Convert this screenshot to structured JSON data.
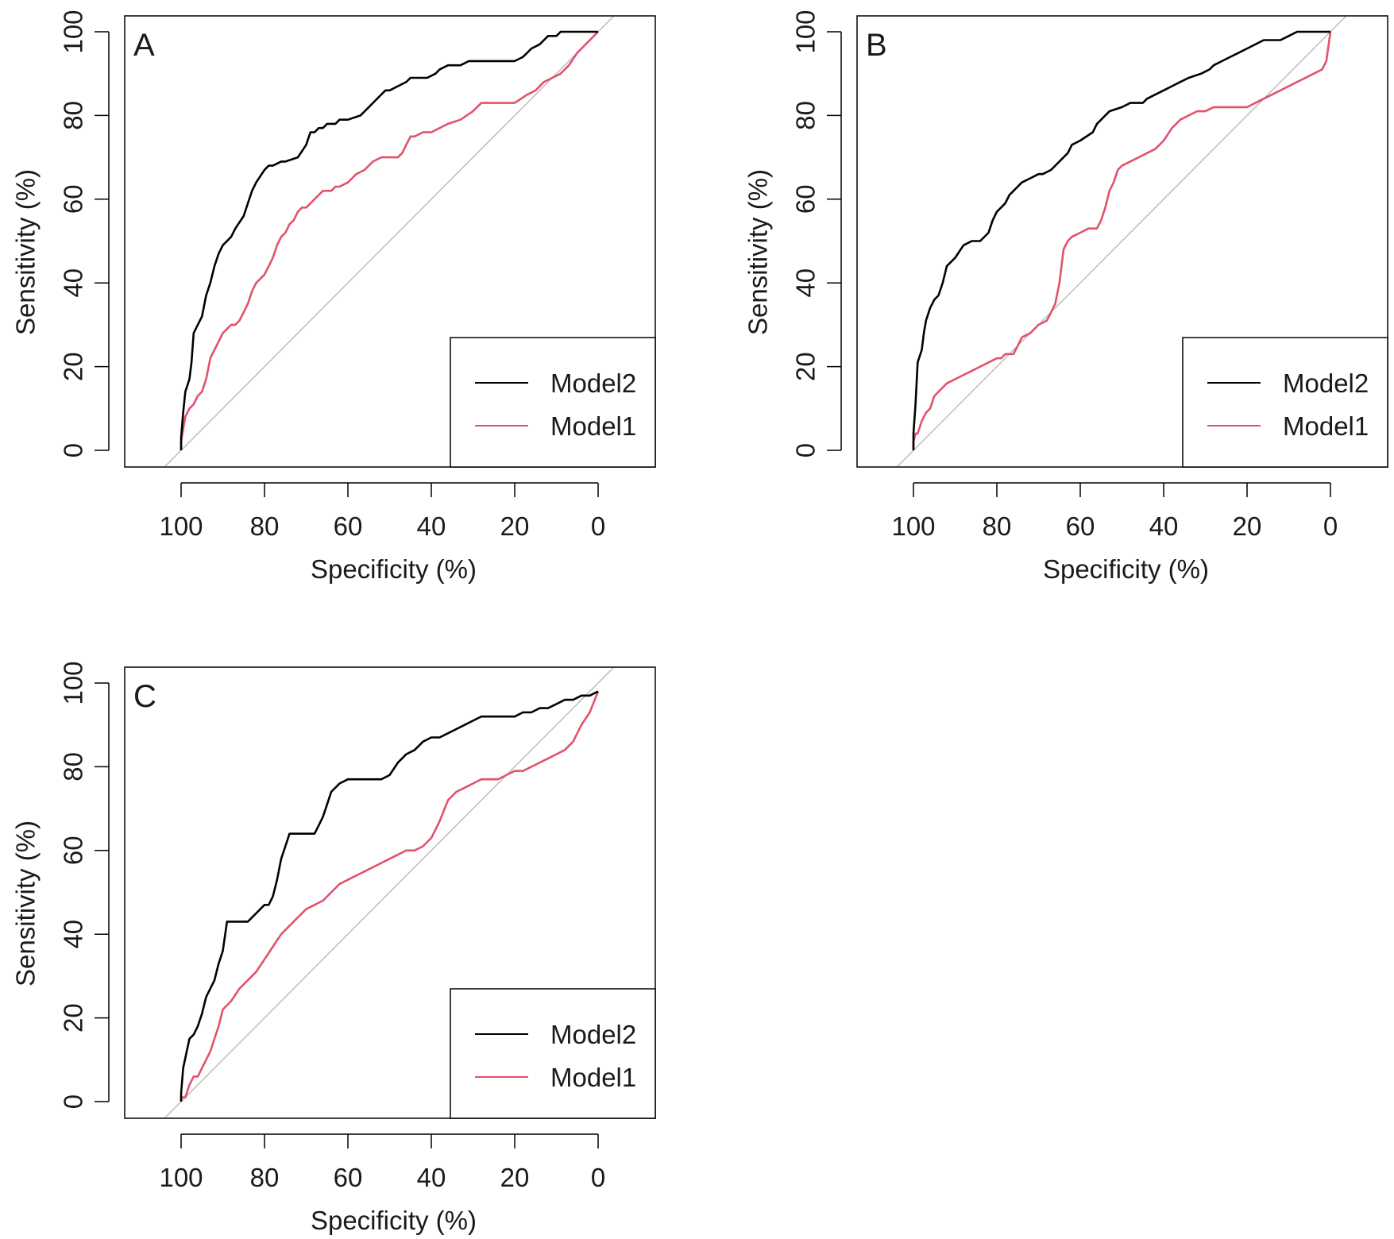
{
  "colors": {
    "Model2": "#000000",
    "Model1": "#df536b",
    "diagonal": "#bdbdbd"
  },
  "chart_data": [
    {
      "type": "line",
      "panel": "A",
      "xlabel": "Specificity (%)",
      "ylabel": "Sensitivity (%)",
      "xlim": [
        100,
        0
      ],
      "ylim": [
        0,
        100
      ],
      "xticks": [
        "100",
        "80",
        "60",
        "40",
        "20",
        "0"
      ],
      "yticks": [
        "0",
        "20",
        "40",
        "60",
        "80",
        "100"
      ],
      "legend": [
        "Model2",
        "Model1"
      ],
      "legend_position": "bottom-right",
      "series": [
        {
          "name": "Model2",
          "x": [
            100,
            100,
            99.5,
            99,
            98,
            97.5,
            97,
            96,
            95,
            94,
            93,
            92,
            91,
            90,
            88,
            87,
            85,
            84,
            83,
            82,
            80,
            79,
            78,
            76,
            75,
            72,
            70,
            69,
            68,
            67,
            66,
            65,
            64,
            63,
            62,
            60,
            57,
            55,
            53,
            52,
            51,
            50,
            48,
            46,
            45,
            43,
            41,
            39,
            38,
            36,
            34,
            33,
            31,
            28,
            25,
            22,
            20,
            18,
            17,
            16,
            14,
            13,
            12,
            11,
            10,
            9,
            8,
            6,
            4,
            2,
            0
          ],
          "y": [
            0,
            3,
            9,
            14,
            17,
            21,
            28,
            30,
            32,
            37,
            40,
            44,
            47,
            49,
            51,
            53,
            56,
            59,
            62,
            64,
            67,
            68,
            68,
            69,
            69,
            70,
            73,
            76,
            76,
            77,
            77,
            78,
            78,
            78,
            79,
            79,
            80,
            82,
            84,
            85,
            86,
            86,
            87,
            88,
            89,
            89,
            89,
            90,
            91,
            92,
            92,
            92,
            93,
            93,
            93,
            93,
            93,
            94,
            95,
            96,
            97,
            98,
            99,
            99,
            99,
            100,
            100,
            100,
            100,
            100,
            100
          ]
        },
        {
          "name": "Model1",
          "x": [
            100,
            100,
            99.5,
            99,
            98,
            97,
            96,
            95,
            94,
            93,
            92,
            91,
            90,
            89,
            88,
            87,
            86,
            85,
            84,
            83,
            82,
            81,
            80,
            79,
            78,
            77,
            76,
            75,
            74,
            73,
            72,
            71,
            70,
            69,
            68,
            67,
            66,
            65,
            64,
            63,
            62,
            60,
            59,
            58,
            56,
            55,
            54,
            52,
            50,
            48,
            47,
            46,
            45,
            44,
            42,
            40,
            38,
            36,
            33,
            30,
            28,
            25,
            23,
            20,
            17,
            15,
            13,
            11,
            9,
            7,
            5,
            3,
            0
          ],
          "y": [
            0,
            2,
            5,
            8,
            10,
            11,
            13,
            14,
            17,
            22,
            24,
            26,
            28,
            29,
            30,
            30,
            31,
            33,
            35,
            38,
            40,
            41,
            42,
            44,
            46,
            49,
            51,
            52,
            54,
            55,
            57,
            58,
            58,
            59,
            60,
            61,
            62,
            62,
            62,
            63,
            63,
            64,
            65,
            66,
            67,
            68,
            69,
            70,
            70,
            70,
            71,
            73,
            75,
            75,
            76,
            76,
            77,
            78,
            79,
            81,
            83,
            83,
            83,
            83,
            85,
            86,
            88,
            89,
            90,
            92,
            95,
            97,
            100
          ]
        }
      ]
    },
    {
      "type": "line",
      "panel": "B",
      "xlabel": "Specificity (%)",
      "ylabel": "Sensitivity (%)",
      "xlim": [
        100,
        0
      ],
      "ylim": [
        0,
        100
      ],
      "xticks": [
        "100",
        "80",
        "60",
        "40",
        "20",
        "0"
      ],
      "yticks": [
        "0",
        "20",
        "40",
        "60",
        "80",
        "100"
      ],
      "legend": [
        "Model2",
        "Model1"
      ],
      "legend_position": "bottom-right",
      "series": [
        {
          "name": "Model2",
          "x": [
            100,
            100,
            99.5,
            99,
            98,
            97.5,
            97,
            96,
            95,
            94,
            93,
            92,
            90,
            88,
            86,
            85,
            84,
            82,
            81,
            80,
            79,
            78,
            77,
            76,
            74,
            72,
            70,
            69,
            67,
            66,
            64,
            63,
            62,
            60,
            57,
            56,
            55,
            53,
            50,
            48,
            45,
            44,
            42,
            40,
            38,
            36,
            34,
            31,
            29,
            28,
            26,
            24,
            22,
            20,
            18,
            16,
            14,
            12,
            10,
            8,
            6,
            4,
            2,
            0
          ],
          "y": [
            0,
            4,
            11,
            21,
            24,
            28,
            31,
            34,
            36,
            37,
            40,
            44,
            46,
            49,
            50,
            50,
            50,
            52,
            55,
            57,
            58,
            59,
            61,
            62,
            64,
            65,
            66,
            66,
            67,
            68,
            70,
            71,
            73,
            74,
            76,
            78,
            79,
            81,
            82,
            83,
            83,
            84,
            85,
            86,
            87,
            88,
            89,
            90,
            91,
            92,
            93,
            94,
            95,
            96,
            97,
            98,
            98,
            98,
            99,
            100,
            100,
            100,
            100,
            100
          ]
        },
        {
          "name": "Model1",
          "x": [
            100,
            100,
            99.5,
            99,
            98,
            97,
            96,
            95,
            93,
            92,
            90,
            88,
            86,
            84,
            82,
            80,
            79,
            78,
            76,
            75,
            74,
            72,
            71,
            70,
            68,
            67,
            66,
            65,
            64,
            63,
            62,
            60,
            58,
            56,
            55,
            54,
            53,
            52,
            51,
            50,
            48,
            46,
            44,
            42,
            40,
            38,
            36,
            34,
            32,
            30,
            28,
            26,
            24,
            22,
            20,
            18,
            16,
            14,
            12,
            10,
            8,
            6,
            4,
            2,
            1,
            0
          ],
          "y": [
            0,
            2,
            4,
            4,
            7,
            9,
            10,
            13,
            15,
            16,
            17,
            18,
            19,
            20,
            21,
            22,
            22,
            23,
            23,
            25,
            27,
            28,
            29,
            30,
            31,
            33,
            35,
            40,
            48,
            50,
            51,
            52,
            53,
            53,
            55,
            58,
            62,
            64,
            67,
            68,
            69,
            70,
            71,
            72,
            74,
            77,
            79,
            80,
            81,
            81,
            82,
            82,
            82,
            82,
            82,
            83,
            84,
            85,
            86,
            87,
            88,
            89,
            90,
            91,
            93,
            100
          ]
        }
      ]
    },
    {
      "type": "line",
      "panel": "C",
      "xlabel": "Specificity (%)",
      "ylabel": "Sensitivity (%)",
      "xlim": [
        100,
        0
      ],
      "ylim": [
        0,
        100
      ],
      "xticks": [
        "100",
        "80",
        "60",
        "40",
        "20",
        "0"
      ],
      "yticks": [
        "0",
        "20",
        "40",
        "60",
        "80",
        "100"
      ],
      "legend": [
        "Model2",
        "Model1"
      ],
      "legend_position": "bottom-right",
      "series": [
        {
          "name": "Model2",
          "x": [
            100,
            100,
            99.5,
            98,
            97,
            96,
            95,
            94,
            93,
            92,
            91,
            90,
            89,
            88,
            86,
            84,
            82,
            80,
            79,
            78,
            77,
            76,
            75,
            74,
            72,
            70,
            68,
            67,
            66,
            65,
            64,
            62,
            60,
            58,
            56,
            54,
            52,
            50,
            48,
            46,
            44,
            42,
            40,
            38,
            36,
            34,
            32,
            30,
            28,
            26,
            24,
            22,
            20,
            18,
            16,
            14,
            12,
            10,
            8,
            6,
            4,
            2,
            0
          ],
          "y": [
            0,
            2,
            8,
            15,
            16,
            18,
            21,
            25,
            27,
            29,
            33,
            36,
            43,
            43,
            43,
            43,
            45,
            47,
            47,
            49,
            53,
            58,
            61,
            64,
            64,
            64,
            64,
            66,
            68,
            71,
            74,
            76,
            77,
            77,
            77,
            77,
            77,
            78,
            81,
            83,
            84,
            86,
            87,
            87,
            88,
            89,
            90,
            91,
            92,
            92,
            92,
            92,
            92,
            93,
            93,
            94,
            94,
            95,
            96,
            96,
            97,
            97,
            98
          ]
        },
        {
          "name": "Model1",
          "x": [
            100,
            100,
            99,
            98,
            97,
            96,
            95,
            94,
            93,
            92,
            91,
            90,
            88,
            86,
            84,
            82,
            80,
            78,
            76,
            74,
            72,
            70,
            68,
            66,
            64,
            62,
            60,
            58,
            56,
            54,
            52,
            50,
            48,
            46,
            44,
            42,
            40,
            39,
            38,
            36,
            34,
            32,
            30,
            28,
            26,
            24,
            22,
            20,
            18,
            16,
            14,
            12,
            10,
            8,
            6,
            4,
            2,
            0
          ],
          "y": [
            0,
            1,
            1,
            4,
            6,
            6,
            8,
            10,
            12,
            15,
            18,
            22,
            24,
            27,
            29,
            31,
            34,
            37,
            40,
            42,
            44,
            46,
            47,
            48,
            50,
            52,
            53,
            54,
            55,
            56,
            57,
            58,
            59,
            60,
            60,
            61,
            63,
            65,
            67,
            72,
            74,
            75,
            76,
            77,
            77,
            77,
            78,
            79,
            79,
            80,
            81,
            82,
            83,
            84,
            86,
            90,
            93,
            98
          ]
        }
      ]
    }
  ]
}
